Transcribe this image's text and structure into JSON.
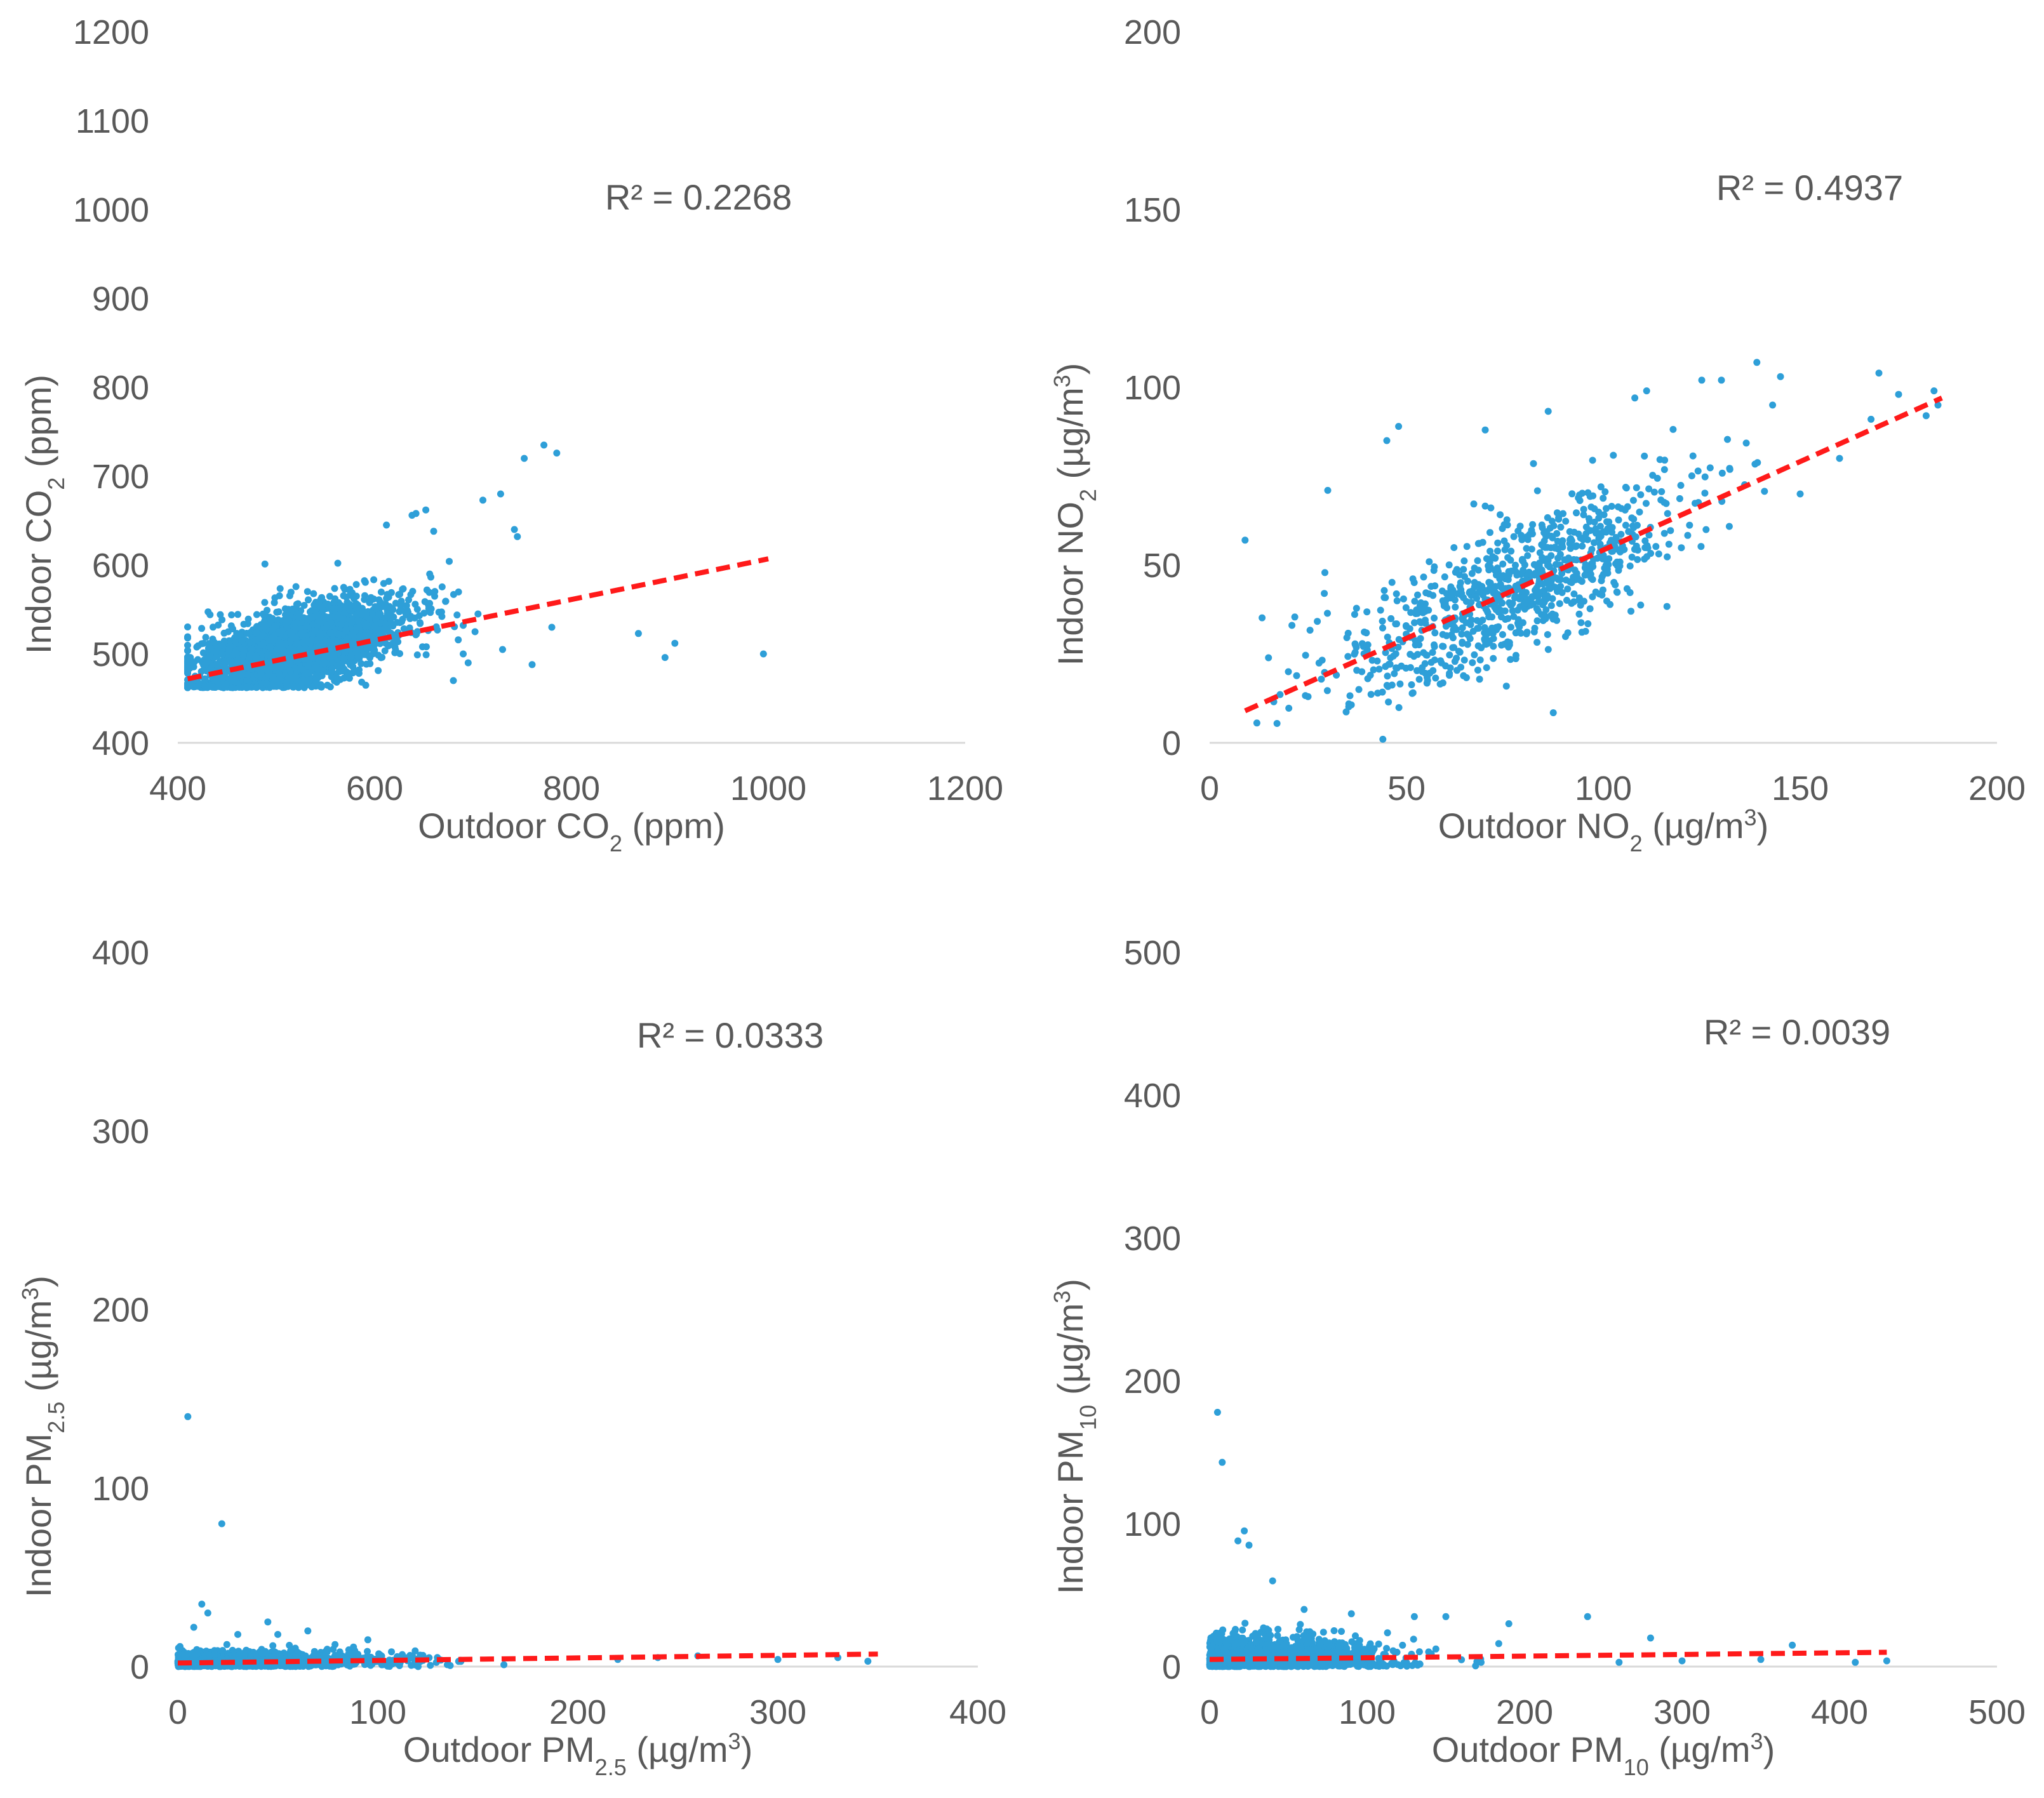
{
  "colors": {
    "points": "#2e9fd8",
    "trendline": "#ff1a1a",
    "axis": "#d9d9d9",
    "text": "#595959"
  },
  "chart_data": [
    {
      "type": "scatter",
      "xlabel": {
        "base": "Outdoor CO",
        "sub": "2",
        "units": " (ppm)"
      },
      "ylabel": {
        "base": "Indoor CO",
        "sub": "2",
        "units": " (ppm)"
      },
      "xlim": [
        400,
        1200
      ],
      "ylim": [
        400,
        1200
      ],
      "xticks": [
        "400",
        "600",
        "800",
        "1000",
        "1200"
      ],
      "yticks": [
        "400",
        "500",
        "600",
        "700",
        "800",
        "900",
        "1000",
        "1100",
        "1200"
      ],
      "annotation": "R² = 0.2268",
      "trendline": {
        "style": "dashed",
        "x": [
          410,
          1000
        ],
        "y": [
          472,
          607
        ]
      },
      "points": [
        [
          772,
          735
        ],
        [
          785,
          726
        ],
        [
          752,
          720
        ],
        [
          728,
          680
        ],
        [
          710,
          673
        ],
        [
          742,
          640
        ],
        [
          745,
          632
        ],
        [
          652,
          662
        ],
        [
          642,
          658
        ],
        [
          638,
          656
        ],
        [
          660,
          638
        ],
        [
          612,
          645
        ],
        [
          690,
          500
        ],
        [
          705,
          545
        ],
        [
          702,
          525
        ],
        [
          730,
          505
        ],
        [
          760,
          488
        ],
        [
          780,
          530
        ],
        [
          868,
          523
        ],
        [
          905,
          512
        ],
        [
          895,
          496
        ],
        [
          995,
          500
        ],
        [
          680,
          470
        ],
        [
          695,
          490
        ]
      ],
      "cluster": {
        "x_mean": 520,
        "x_sd": 55,
        "x_min": 410,
        "x_max": 690,
        "intercept": 350,
        "slope": 0.3,
        "noise_sd": 22,
        "y_min": 462,
        "count": 2600
      }
    },
    {
      "type": "scatter",
      "xlabel": {
        "base": "Outdoor NO",
        "sub": "2",
        "units": " (µg/m",
        "sup": "3",
        "close": ")"
      },
      "ylabel": {
        "base": "Indoor NO",
        "sub": "2",
        "units": " (µg/m",
        "sup": "3",
        "close": ")"
      },
      "xlim": [
        0,
        200
      ],
      "ylim": [
        0,
        200
      ],
      "xticks": [
        "0",
        "50",
        "100",
        "150",
        "200"
      ],
      "yticks": [
        "0",
        "50",
        "100",
        "150",
        "200"
      ],
      "annotation": "R² = 0.4937",
      "trendline": {
        "style": "dashed",
        "x": [
          9,
          186
        ],
        "y": [
          9,
          97
        ]
      },
      "points": [
        [
          9,
          57
        ],
        [
          30,
          71
        ],
        [
          48,
          89
        ],
        [
          70,
          88
        ],
        [
          139,
          107
        ],
        [
          170,
          104
        ],
        [
          184,
          99
        ],
        [
          182,
          92
        ],
        [
          185,
          95
        ],
        [
          130,
          102
        ],
        [
          125,
          102
        ],
        [
          145,
          103
        ],
        [
          111,
          99
        ],
        [
          143,
          95
        ],
        [
          108,
          97
        ],
        [
          44,
          1
        ],
        [
          20,
          20
        ],
        [
          25,
          13
        ],
        [
          175,
          98
        ],
        [
          168,
          91
        ],
        [
          160,
          80
        ],
        [
          150,
          70
        ],
        [
          45,
          85
        ]
      ],
      "cluster": {
        "x_mean": 78,
        "x_sd": 22,
        "x_min": 12,
        "x_max": 183,
        "intercept": 4.5,
        "slope": 0.5,
        "noise_sd": 10,
        "y_min": 5,
        "count": 900
      }
    },
    {
      "type": "scatter",
      "xlabel": {
        "base": "Outdoor PM",
        "sub": "2.5",
        "units": " (µg/m",
        "sup": "3",
        "close": ")"
      },
      "ylabel": {
        "base": "Indoor PM",
        "sub": "2.5",
        "units": " (µg/m",
        "sup": "3",
        "close": ")"
      },
      "xlim": [
        0,
        400
      ],
      "ylim": [
        0,
        400
      ],
      "xticks": [
        "0",
        "100",
        "200",
        "300",
        "400"
      ],
      "yticks": [
        "0",
        "100",
        "200",
        "300",
        "400"
      ],
      "annotation": "R² = 0.0333",
      "trendline": {
        "style": "dashed",
        "x": [
          0,
          350
        ],
        "y": [
          2,
          7
        ]
      },
      "points": [
        [
          5,
          140
        ],
        [
          22,
          80
        ],
        [
          12,
          35
        ],
        [
          15,
          30
        ],
        [
          45,
          25
        ],
        [
          65,
          20
        ],
        [
          95,
          15
        ],
        [
          30,
          18
        ],
        [
          8,
          22
        ],
        [
          50,
          18
        ],
        [
          260,
          6
        ],
        [
          300,
          4
        ],
        [
          330,
          5
        ],
        [
          345,
          3
        ],
        [
          240,
          5
        ],
        [
          220,
          4
        ]
      ],
      "cluster": {
        "x_mean": 25,
        "x_sd": 40,
        "x_min": 0,
        "x_max": 340,
        "intercept": 2,
        "slope": 0.01,
        "noise_sd": 3,
        "y_min": 0,
        "count": 1500
      }
    },
    {
      "type": "scatter",
      "xlabel": {
        "base": "Outdoor PM",
        "sub": "10",
        "units": " (µg/m",
        "sup": "3",
        "close": ")"
      },
      "ylabel": {
        "base": "Indoor PM",
        "sub": "10",
        "units": " (µg/m",
        "sup": "3",
        "close": ")"
      },
      "xlim": [
        0,
        500
      ],
      "ylim": [
        0,
        500
      ],
      "xticks": [
        "0",
        "100",
        "200",
        "300",
        "400",
        "500"
      ],
      "yticks": [
        "0",
        "100",
        "200",
        "300",
        "400",
        "500"
      ],
      "annotation": "R² = 0.0039",
      "trendline": {
        "style": "dashed",
        "x": [
          0,
          430
        ],
        "y": [
          5,
          10
        ]
      },
      "points": [
        [
          5,
          178
        ],
        [
          8,
          143
        ],
        [
          22,
          95
        ],
        [
          18,
          88
        ],
        [
          25,
          85
        ],
        [
          40,
          60
        ],
        [
          60,
          40
        ],
        [
          90,
          37
        ],
        [
          130,
          35
        ],
        [
          150,
          35
        ],
        [
          190,
          30
        ],
        [
          240,
          35
        ],
        [
          280,
          20
        ],
        [
          370,
          15
        ],
        [
          430,
          4
        ],
        [
          410,
          3
        ],
        [
          350,
          5
        ],
        [
          300,
          4
        ],
        [
          260,
          3
        ]
      ],
      "cluster": {
        "x_mean": 25,
        "x_sd": 45,
        "x_min": 0,
        "x_max": 420,
        "intercept": 5,
        "slope": 0.005,
        "noise_sd": 8,
        "y_min": 0,
        "count": 1600
      }
    }
  ]
}
